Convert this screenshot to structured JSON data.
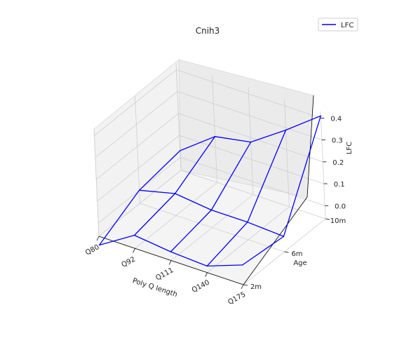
{
  "chart_data": {
    "type": "3d-wireframe",
    "title": "Cnih3",
    "xlabel": "Poly Q length",
    "ylabel": "Age",
    "zlabel": "LFC",
    "x_categories": [
      "Q80",
      "Q92",
      "Q111",
      "Q140",
      "Q175"
    ],
    "y_categories": [
      "2m",
      "6m",
      "10m"
    ],
    "z_ticks": [
      "0.0",
      "0.1",
      "0.2",
      "0.3",
      "0.4"
    ],
    "zlim": [
      -0.06,
      0.43
    ],
    "grid": true,
    "legend_position": "top-right",
    "series": [
      {
        "name": "LFC",
        "color": "#0000ff",
        "grid_rows": [
          {
            "age": "2m",
            "values": [
              -0.1,
              0.0,
              -0.02,
              -0.03,
              0.03
            ]
          },
          {
            "age": "6m",
            "values": [
              0.0,
              0.04,
              0.02,
              0.02,
              0.01
            ]
          },
          {
            "age": "10m",
            "values": [
              0.03,
              0.15,
              0.18,
              0.29,
              0.41
            ]
          }
        ]
      }
    ]
  }
}
